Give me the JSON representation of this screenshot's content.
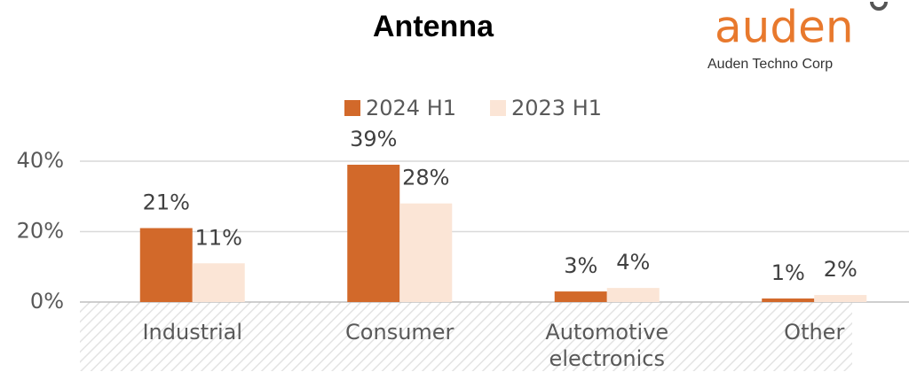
{
  "chart_data": {
    "type": "bar",
    "title": "Antenna",
    "categories": [
      "Industrial",
      "Consumer",
      "Automotive electronics",
      "Other"
    ],
    "series": [
      {
        "name": "2024 H1",
        "color": "#d2692a",
        "values": [
          21,
          39,
          3,
          1
        ],
        "value_labels": [
          "21%",
          "39%",
          "3%",
          "1%"
        ]
      },
      {
        "name": "2023 H1",
        "color": "#fbe5d6",
        "values": [
          11,
          28,
          4,
          2
        ],
        "value_labels": [
          "11%",
          "28%",
          "4%",
          "2%"
        ]
      }
    ],
    "ylim": [
      0,
      40
    ],
    "yticks": [
      {
        "value": 0,
        "label": "0%"
      },
      {
        "value": 20,
        "label": "20%"
      },
      {
        "value": 40,
        "label": "40%"
      }
    ],
    "grid": true,
    "legend": "top"
  },
  "logo": {
    "brand": "auden",
    "tagline": "Auden Techno Corp"
  }
}
